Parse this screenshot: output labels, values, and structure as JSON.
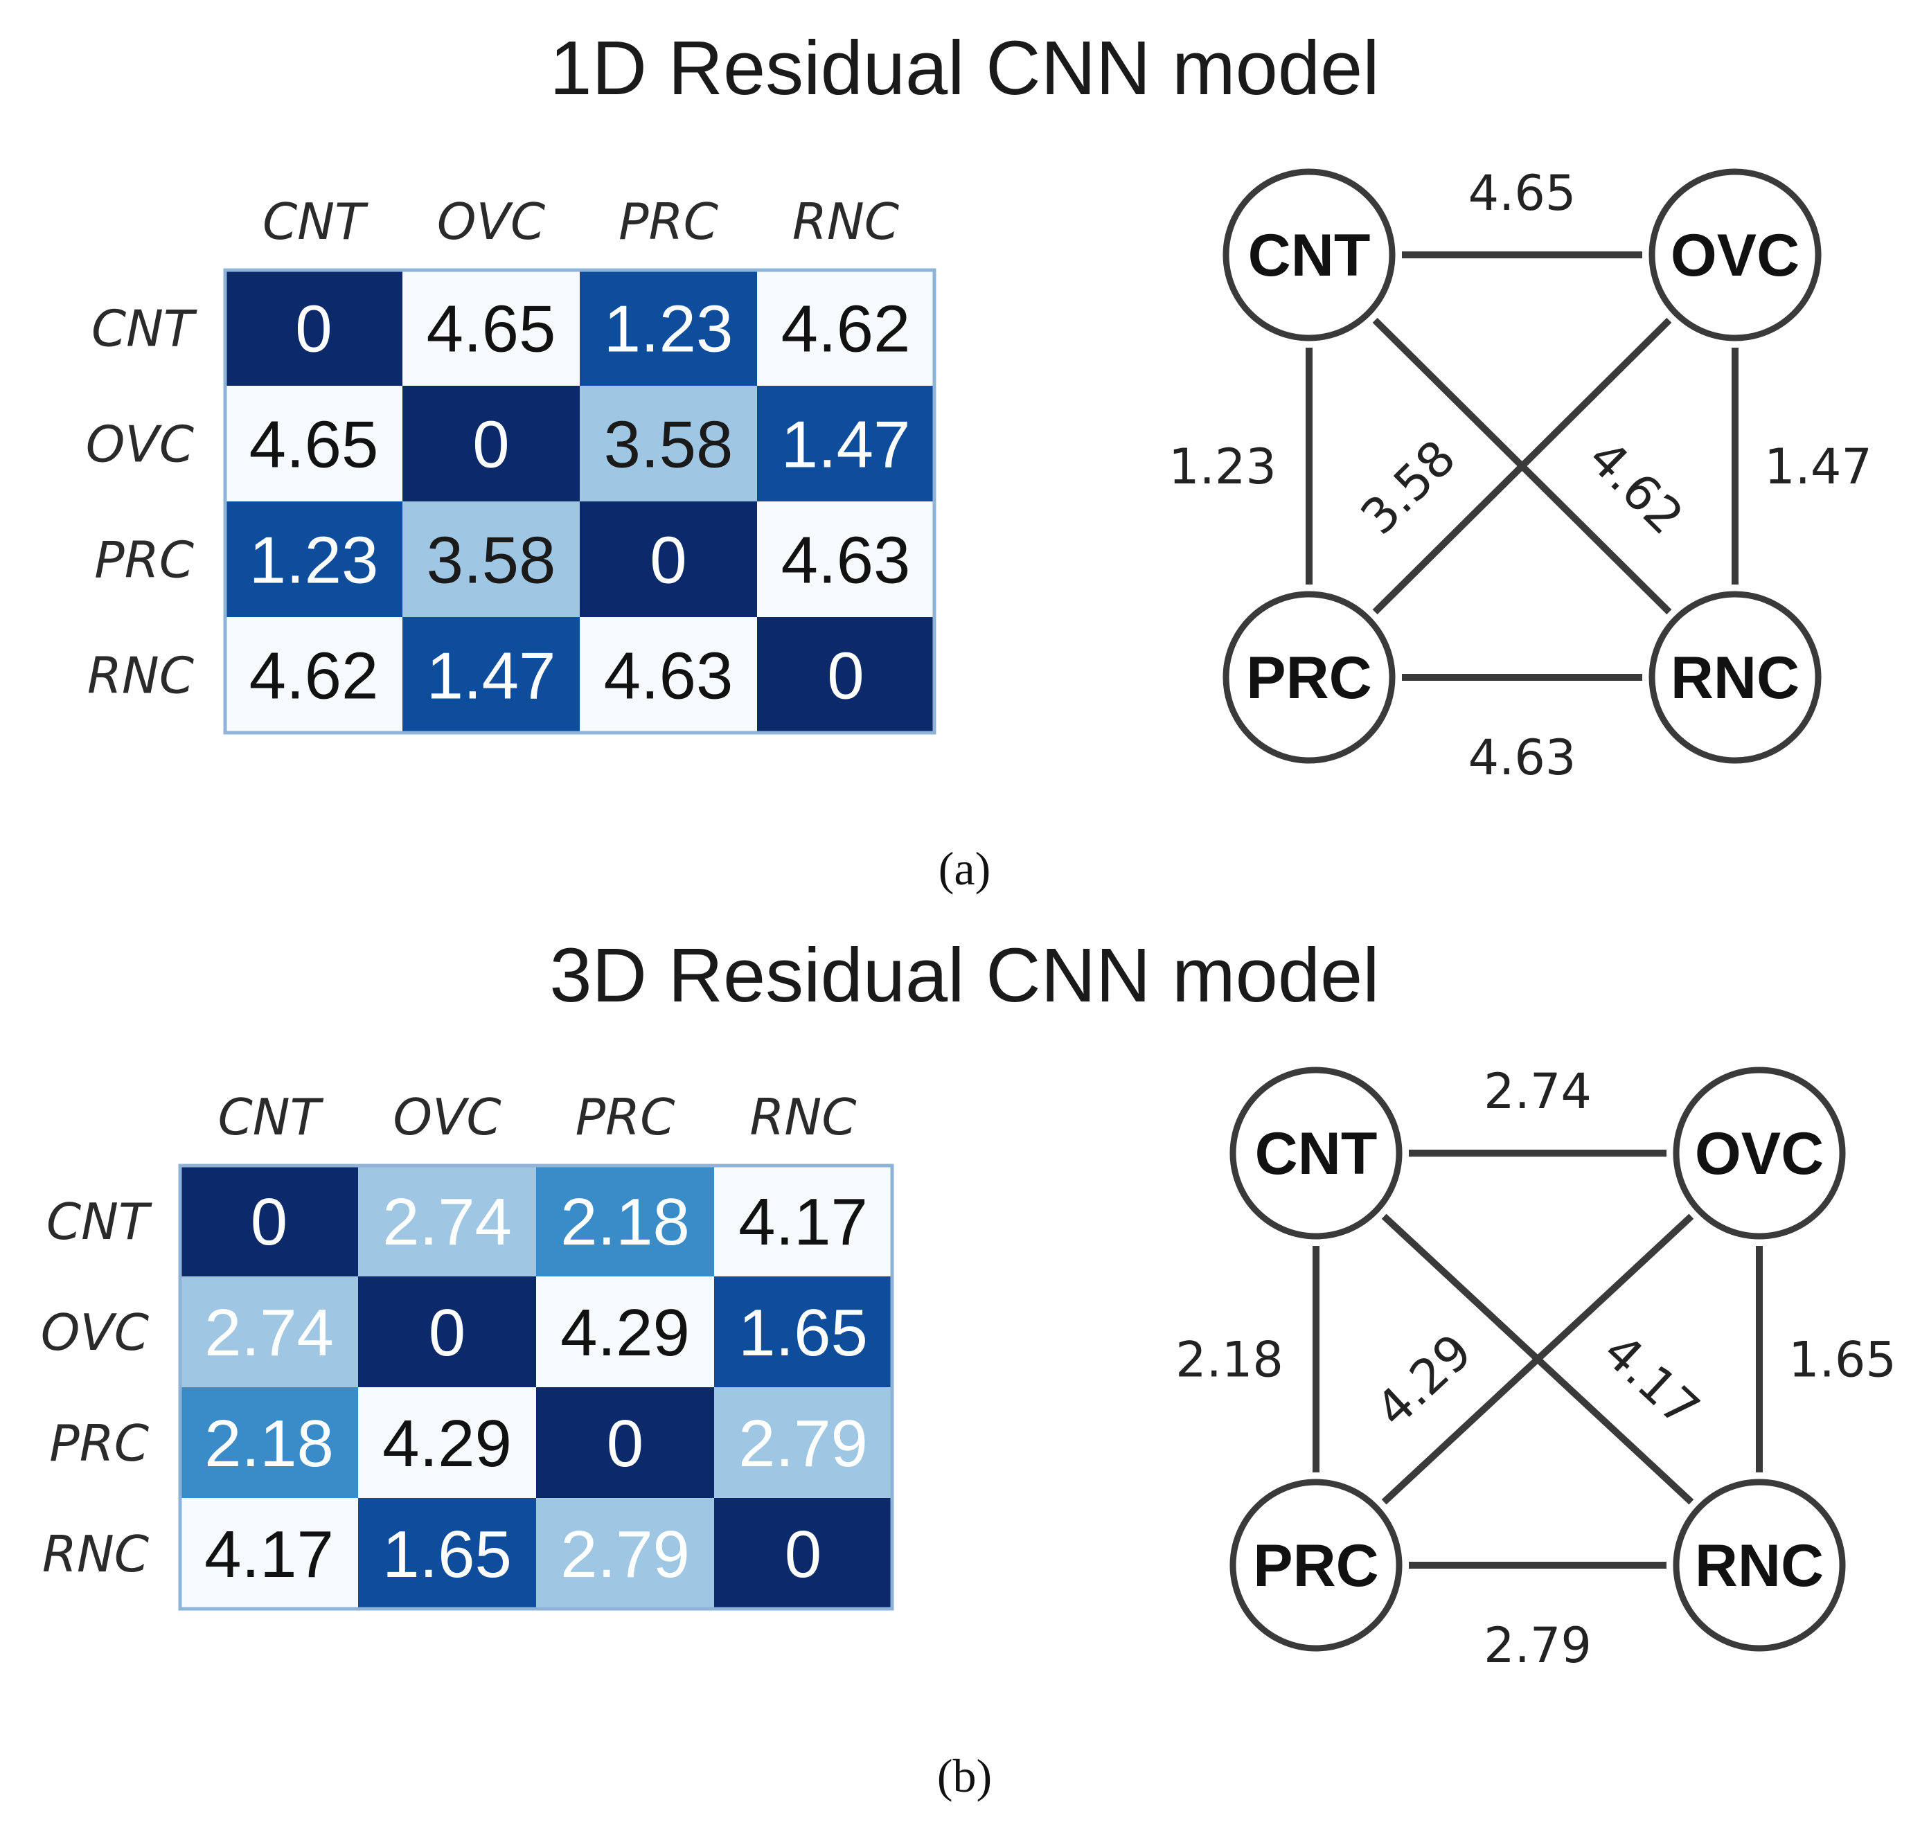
{
  "chart_data": [
    {
      "type": "heatmap",
      "panel": "(a)",
      "title": "1D Residual CNN  model",
      "labels": [
        "CNT",
        "OVC",
        "PRC",
        "RNC"
      ],
      "matrix": [
        [
          "0",
          "4.65",
          "1.23",
          "4.62"
        ],
        [
          "4.65",
          "0",
          "3.58",
          "1.47"
        ],
        [
          "1.23",
          "3.58",
          "0",
          "4.63"
        ],
        [
          "4.62",
          "1.47",
          "4.63",
          "0"
        ]
      ],
      "graph": {
        "nodes": [
          "CNT",
          "OVC",
          "PRC",
          "RNC"
        ],
        "edges": [
          {
            "from": "CNT",
            "to": "OVC",
            "label": "4.65"
          },
          {
            "from": "CNT",
            "to": "PRC",
            "label": "1.23"
          },
          {
            "from": "OVC",
            "to": "RNC",
            "label": "1.47"
          },
          {
            "from": "PRC",
            "to": "RNC",
            "label": "4.63"
          },
          {
            "from": "PRC",
            "to": "OVC",
            "label": "3.58"
          },
          {
            "from": "CNT",
            "to": "RNC",
            "label": "4.62"
          }
        ]
      }
    },
    {
      "type": "heatmap",
      "panel": "(b)",
      "title": "3D Residual CNN  model",
      "labels": [
        "CNT",
        "OVC",
        "PRC",
        "RNC"
      ],
      "matrix": [
        [
          "0",
          "2.74",
          "2.18",
          "4.17"
        ],
        [
          "2.74",
          "0",
          "4.29",
          "1.65"
        ],
        [
          "2.18",
          "4.29",
          "0",
          "2.79"
        ],
        [
          "4.17",
          "1.65",
          "2.79",
          "0"
        ]
      ],
      "graph": {
        "nodes": [
          "CNT",
          "OVC",
          "PRC",
          "RNC"
        ],
        "edges": [
          {
            "from": "CNT",
            "to": "OVC",
            "label": "2.74"
          },
          {
            "from": "CNT",
            "to": "PRC",
            "label": "2.18"
          },
          {
            "from": "OVC",
            "to": "RNC",
            "label": "1.65"
          },
          {
            "from": "PRC",
            "to": "RNC",
            "label": "2.79"
          },
          {
            "from": "PRC",
            "to": "OVC",
            "label": "4.29"
          },
          {
            "from": "CNT",
            "to": "RNC",
            "label": "4.17"
          }
        ]
      }
    }
  ],
  "colors": {
    "darkest": "#0c2a6a",
    "dark": "#0e4d9c",
    "medium": "#3a8cc8",
    "light": "#9fc6e3",
    "pale": "#e6eff8",
    "white": "#f7fafd",
    "border": "#8fb3d6",
    "edge": "#3a3a3a"
  }
}
